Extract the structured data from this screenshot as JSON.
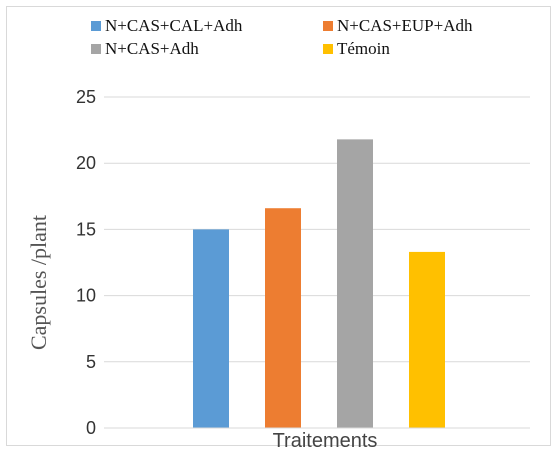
{
  "chart_data": {
    "type": "bar",
    "categories": [
      "Traitements"
    ],
    "series": [
      {
        "name": "N+CAS+CAL+Adh",
        "values": [
          15.0
        ],
        "color": "#5B9BD5"
      },
      {
        "name": "N+CAS+EUP+Adh",
        "values": [
          16.6
        ],
        "color": "#ED7D31"
      },
      {
        "name": "N+CAS+Adh",
        "values": [
          21.8
        ],
        "color": "#A5A5A5"
      },
      {
        "name": "Témoin",
        "values": [
          13.3
        ],
        "color": "#FFC000"
      }
    ],
    "title": "",
    "xlabel": "Traitements",
    "ylabel": "Capsules /plant",
    "ylim": [
      0,
      25
    ],
    "yticks": [
      0,
      5,
      10,
      15,
      20,
      25
    ],
    "grid": true,
    "legend_position": "top"
  }
}
